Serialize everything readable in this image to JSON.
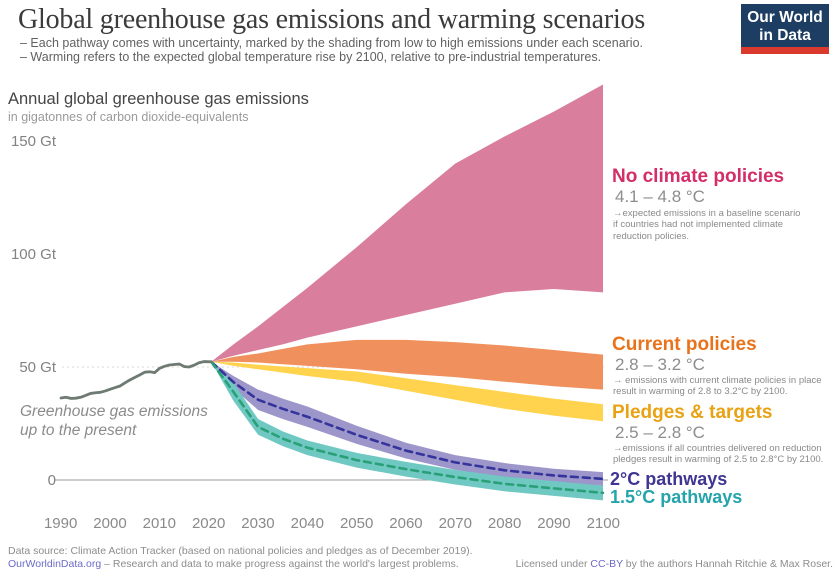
{
  "header": {
    "title": "Global greenhouse gas emissions and warming scenarios",
    "subtitle_line1": "– Each pathway comes with uncertainty, marked by the shading from low to high emissions under each scenario.",
    "subtitle_line2": "– Warming refers to the expected global temperature rise by 2100, relative to pre-industrial temperatures.",
    "logo_line1": "Our World",
    "logo_line2": "in Data"
  },
  "chart_heading": {
    "title": "Annual global greenhouse gas emissions",
    "unit": "in gigatonnes of carbon dioxide-equivalents"
  },
  "axis": {
    "y_ticks": [
      {
        "value": 150,
        "label": "150 Gt"
      },
      {
        "value": 100,
        "label": "100 Gt"
      },
      {
        "value": 50,
        "label": "50 Gt"
      },
      {
        "value": 0,
        "label": "0"
      }
    ],
    "x_ticks": [
      "1990",
      "2000",
      "2010",
      "2020",
      "2030",
      "2040",
      "2050",
      "2060",
      "2070",
      "2080",
      "2090",
      "2100"
    ]
  },
  "history_label": {
    "line1": "Greenhouse gas emissions",
    "line2": "up to the present"
  },
  "annotations": {
    "no_policy": {
      "title": "No climate policies",
      "range": "4.1 – 4.8 °C",
      "note": "→expected emissions in a baseline scenario if countries had not implemented climate reduction policies.",
      "color": "#d42e68"
    },
    "current_policy": {
      "title": "Current policies",
      "range": "2.8 – 3.2 °C",
      "note": "→ emissions with current climate policies in place result in warming of 2.8 to 3.2°C by 2100.",
      "color": "#e9731b"
    },
    "pledges": {
      "title": "Pledges & targets",
      "range": "2.5 – 2.8 °C",
      "note": "→emissions if all countries delivered on reduction pledges result in warming of 2.5 to 2.8°C by 2100.",
      "color": "#e8a213"
    },
    "two_deg": {
      "title": "2°C pathways",
      "color": "#3f3693"
    },
    "one_five_deg": {
      "title": "1.5°C pathways",
      "color": "#25a4ab"
    }
  },
  "footer": {
    "source": "Data source: Climate Action Tracker (based on national policies and pledges as of December 2019).",
    "owid_link": "OurWorldinData.org",
    "owid_tagline": " – Research and data to make progress against the world's largest problems.",
    "license_pre": "Licensed under ",
    "license_link": "CC-BY",
    "license_post": " by the authors Hannah Ritchie & Max Roser."
  },
  "chart_data": {
    "type": "area",
    "title": "Annual global greenhouse gas emissions",
    "ylabel": "gigatonnes of carbon dioxide-equivalents",
    "x_range": [
      1990,
      2100
    ],
    "ylim_gt": [
      -10,
      175
    ],
    "y_gridline_gt": 50,
    "grid": "50Gt dashed only, solid zero axis",
    "legend_position": "right-annotations",
    "historical": {
      "name": "Greenhouse gas emissions up to the present",
      "color": "#6e7a72",
      "years": [
        1990,
        1991,
        1992,
        1993,
        1994,
        1995,
        1996,
        1997,
        1998,
        1999,
        2000,
        2001,
        2002,
        2003,
        2004,
        2005,
        2006,
        2007,
        2008,
        2009,
        2010,
        2011,
        2012,
        2013,
        2014,
        2015,
        2016,
        2017,
        2018,
        2019,
        2020.5
      ],
      "values": [
        36.3,
        36.6,
        36.1,
        36.2,
        36.6,
        37.4,
        38.3,
        38.6,
        38.8,
        39.4,
        40.2,
        40.9,
        41.6,
        43.0,
        44.3,
        45.4,
        46.5,
        47.7,
        47.9,
        47.5,
        49.4,
        50.3,
        50.9,
        51.1,
        51.3,
        50.2,
        50.0,
        50.8,
        51.9,
        52.4,
        52.3
      ]
    },
    "scenario_years": [
      2020.5,
      2025,
      2030,
      2035,
      2040,
      2050,
      2060,
      2070,
      2080,
      2090,
      2100
    ],
    "scenarios": [
      {
        "id": "no_policy",
        "name": "No climate policies",
        "warming_2100": "4.1 – 4.8 °C",
        "band_color": "#d97e9d",
        "high": [
          52.3,
          60,
          68,
          76.5,
          85,
          103,
          122,
          140,
          152,
          163,
          175
        ],
        "low": [
          52.3,
          55,
          57.5,
          60,
          63,
          68,
          73,
          78,
          83,
          84.5,
          83
        ]
      },
      {
        "id": "current_policy",
        "name": "Current policies",
        "warming_2100": "2.8 – 3.2 °C",
        "band_color": "#f0905d",
        "high": [
          52.3,
          54.5,
          56,
          58,
          60,
          62,
          62,
          61,
          59.5,
          57.5,
          55.5
        ],
        "low": [
          52.3,
          52.3,
          52,
          51.2,
          50.5,
          49,
          47,
          45.5,
          43.5,
          41.5,
          40
        ]
      },
      {
        "id": "pledges",
        "name": "Pledges & targets",
        "warming_2100": "2.5 – 2.8 °C",
        "band_color": "#ffd34d",
        "high": [
          52.3,
          52,
          51,
          50.2,
          49.5,
          48,
          45,
          42,
          39,
          36,
          33.5
        ],
        "low": [
          52.3,
          50.5,
          49,
          47.5,
          46,
          43.5,
          39.5,
          35.5,
          31.5,
          28.5,
          26
        ]
      },
      {
        "id": "two_deg",
        "name": "2°C pathways",
        "band_color": "#9d96ca",
        "line_color": "#34349c",
        "line_style": "dashed",
        "high": [
          52.3,
          46,
          40,
          36,
          32.5,
          24,
          16.5,
          11,
          7.5,
          5,
          3.5
        ],
        "low": [
          52.3,
          40.5,
          31,
          27,
          23.5,
          16,
          9.5,
          4.5,
          1,
          -1,
          -2.5
        ],
        "center": [
          52.3,
          43.3,
          35.5,
          31.5,
          28,
          20,
          13,
          7.8,
          4.3,
          2,
          0.5
        ]
      },
      {
        "id": "one_five_deg",
        "name": "1.5°C pathways",
        "band_color": "#70c8c3",
        "line_color": "#2aa077",
        "line_style": "dashed",
        "high": [
          52.3,
          43,
          27,
          21.5,
          17.5,
          12,
          8,
          4.5,
          1.5,
          -0.5,
          -2.5
        ],
        "low": [
          52.3,
          35,
          20,
          15,
          11,
          5.5,
          1.5,
          -2,
          -5,
          -7,
          -9
        ],
        "center": [
          52.3,
          39,
          23.5,
          18.3,
          14.3,
          8.8,
          4.8,
          1.3,
          -1.7,
          -3.7,
          -5.7
        ]
      }
    ]
  }
}
